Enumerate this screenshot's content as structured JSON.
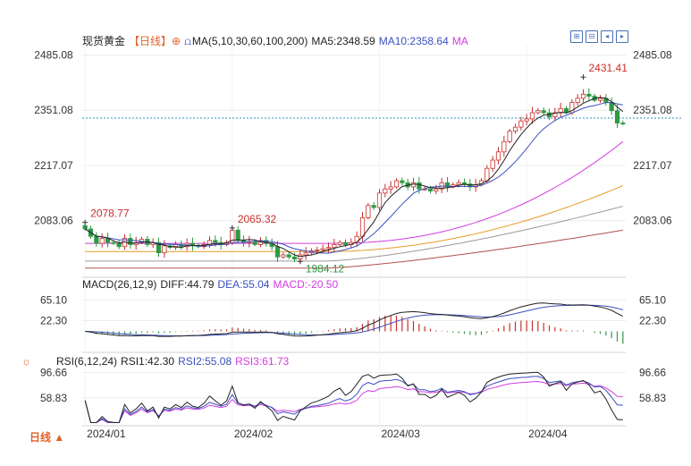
{
  "header": {
    "instrument": "现货黄金",
    "period_tag": "【日线】",
    "ma_label": "MA(5,10,30,60,100,200)",
    "ma5": "MA5:2348.59",
    "ma10": "MA10:2358.64",
    "ma_more": "MA",
    "macd_label": "MACD(26,12,9)",
    "diff": "DIFF:44.79",
    "dea": "DEA:55.04",
    "macd": "MACD:-20.50",
    "rsi_label": "RSI(6,12,24)",
    "rsi1": "RSI1:42.30",
    "rsi2": "RSI2:55.08",
    "rsi3": "RSI3:61.73"
  },
  "footer": {
    "period_selector": "日线 ▲"
  },
  "colors": {
    "up": "#c8302c",
    "down": "#2e9a42",
    "ma5": "#222222",
    "ma10": "#3a4fbf",
    "ma30": "#d23ce0",
    "ma60": "#e89a2a",
    "ma100": "#9a9a9a",
    "ma200": "#b0524a",
    "rsi1": "#222222",
    "rsi2": "#3a4fbf",
    "rsi3": "#d23ce0",
    "accent": "#e0612a"
  },
  "icons": [
    "settings-sun-icon",
    "period-dropdown-icon",
    "toolbar-zoom-icons"
  ],
  "chart_data": [
    {
      "type": "candlestick",
      "panel": "price",
      "y_ticks": [
        2485.08,
        2351.08,
        2217.07,
        2083.06
      ],
      "y_tick_labels": [
        "2485.08",
        "2351.08",
        "2217.07",
        "2083.06"
      ],
      "ylim": [
        1950,
        2510
      ],
      "x_tick_labels": [
        "2024/01",
        "2024/02",
        "2024/03",
        "2024/04"
      ],
      "current_price_line": 2332,
      "annotations": [
        {
          "label": "2078.77",
          "value": 2078.77,
          "bar": 0
        },
        {
          "label": "2065.32",
          "value": 2065.32,
          "bar": 26
        },
        {
          "label": "1984.12",
          "value": 1984.12,
          "bar": 38
        },
        {
          "label": "2431.41",
          "value": 2431.41,
          "bar": 88
        }
      ],
      "closes": [
        2063,
        2045,
        2028,
        2040,
        2030,
        2028,
        2020,
        2040,
        2025,
        2030,
        2038,
        2025,
        2030,
        2005,
        2022,
        2018,
        2025,
        2020,
        2028,
        2022,
        2020,
        2025,
        2035,
        2030,
        2025,
        2030,
        2060,
        2035,
        2030,
        2032,
        2025,
        2035,
        2028,
        2020,
        1995,
        2000,
        1995,
        1990,
        2000,
        2005,
        2010,
        2012,
        2015,
        2018,
        2025,
        2030,
        2025,
        2030,
        2045,
        2090,
        2120,
        2115,
        2150,
        2160,
        2165,
        2180,
        2175,
        2165,
        2175,
        2160,
        2160,
        2155,
        2160,
        2175,
        2165,
        2170,
        2175,
        2172,
        2165,
        2170,
        2180,
        2210,
        2230,
        2250,
        2275,
        2300,
        2310,
        2325,
        2330,
        2345,
        2350,
        2345,
        2335,
        2345,
        2355,
        2345,
        2370,
        2380,
        2390,
        2385,
        2375,
        2380,
        2370,
        2350,
        2320,
        2318
      ]
    },
    {
      "type": "bar",
      "panel": "MACD",
      "y_ticks": [
        65.1,
        22.3
      ],
      "y_tick_labels": [
        "65.10",
        "22.30"
      ],
      "ylim": [
        -40,
        90
      ]
    },
    {
      "type": "line",
      "panel": "RSI",
      "y_ticks": [
        96.66,
        58.83
      ],
      "y_tick_labels": [
        "96.66",
        "58.83"
      ],
      "ylim": [
        20,
        108
      ],
      "series": [
        {
          "name": "RSI1",
          "final": 42.3
        },
        {
          "name": "RSI2",
          "final": 55.08
        },
        {
          "name": "RSI3",
          "final": 61.73
        }
      ]
    }
  ]
}
